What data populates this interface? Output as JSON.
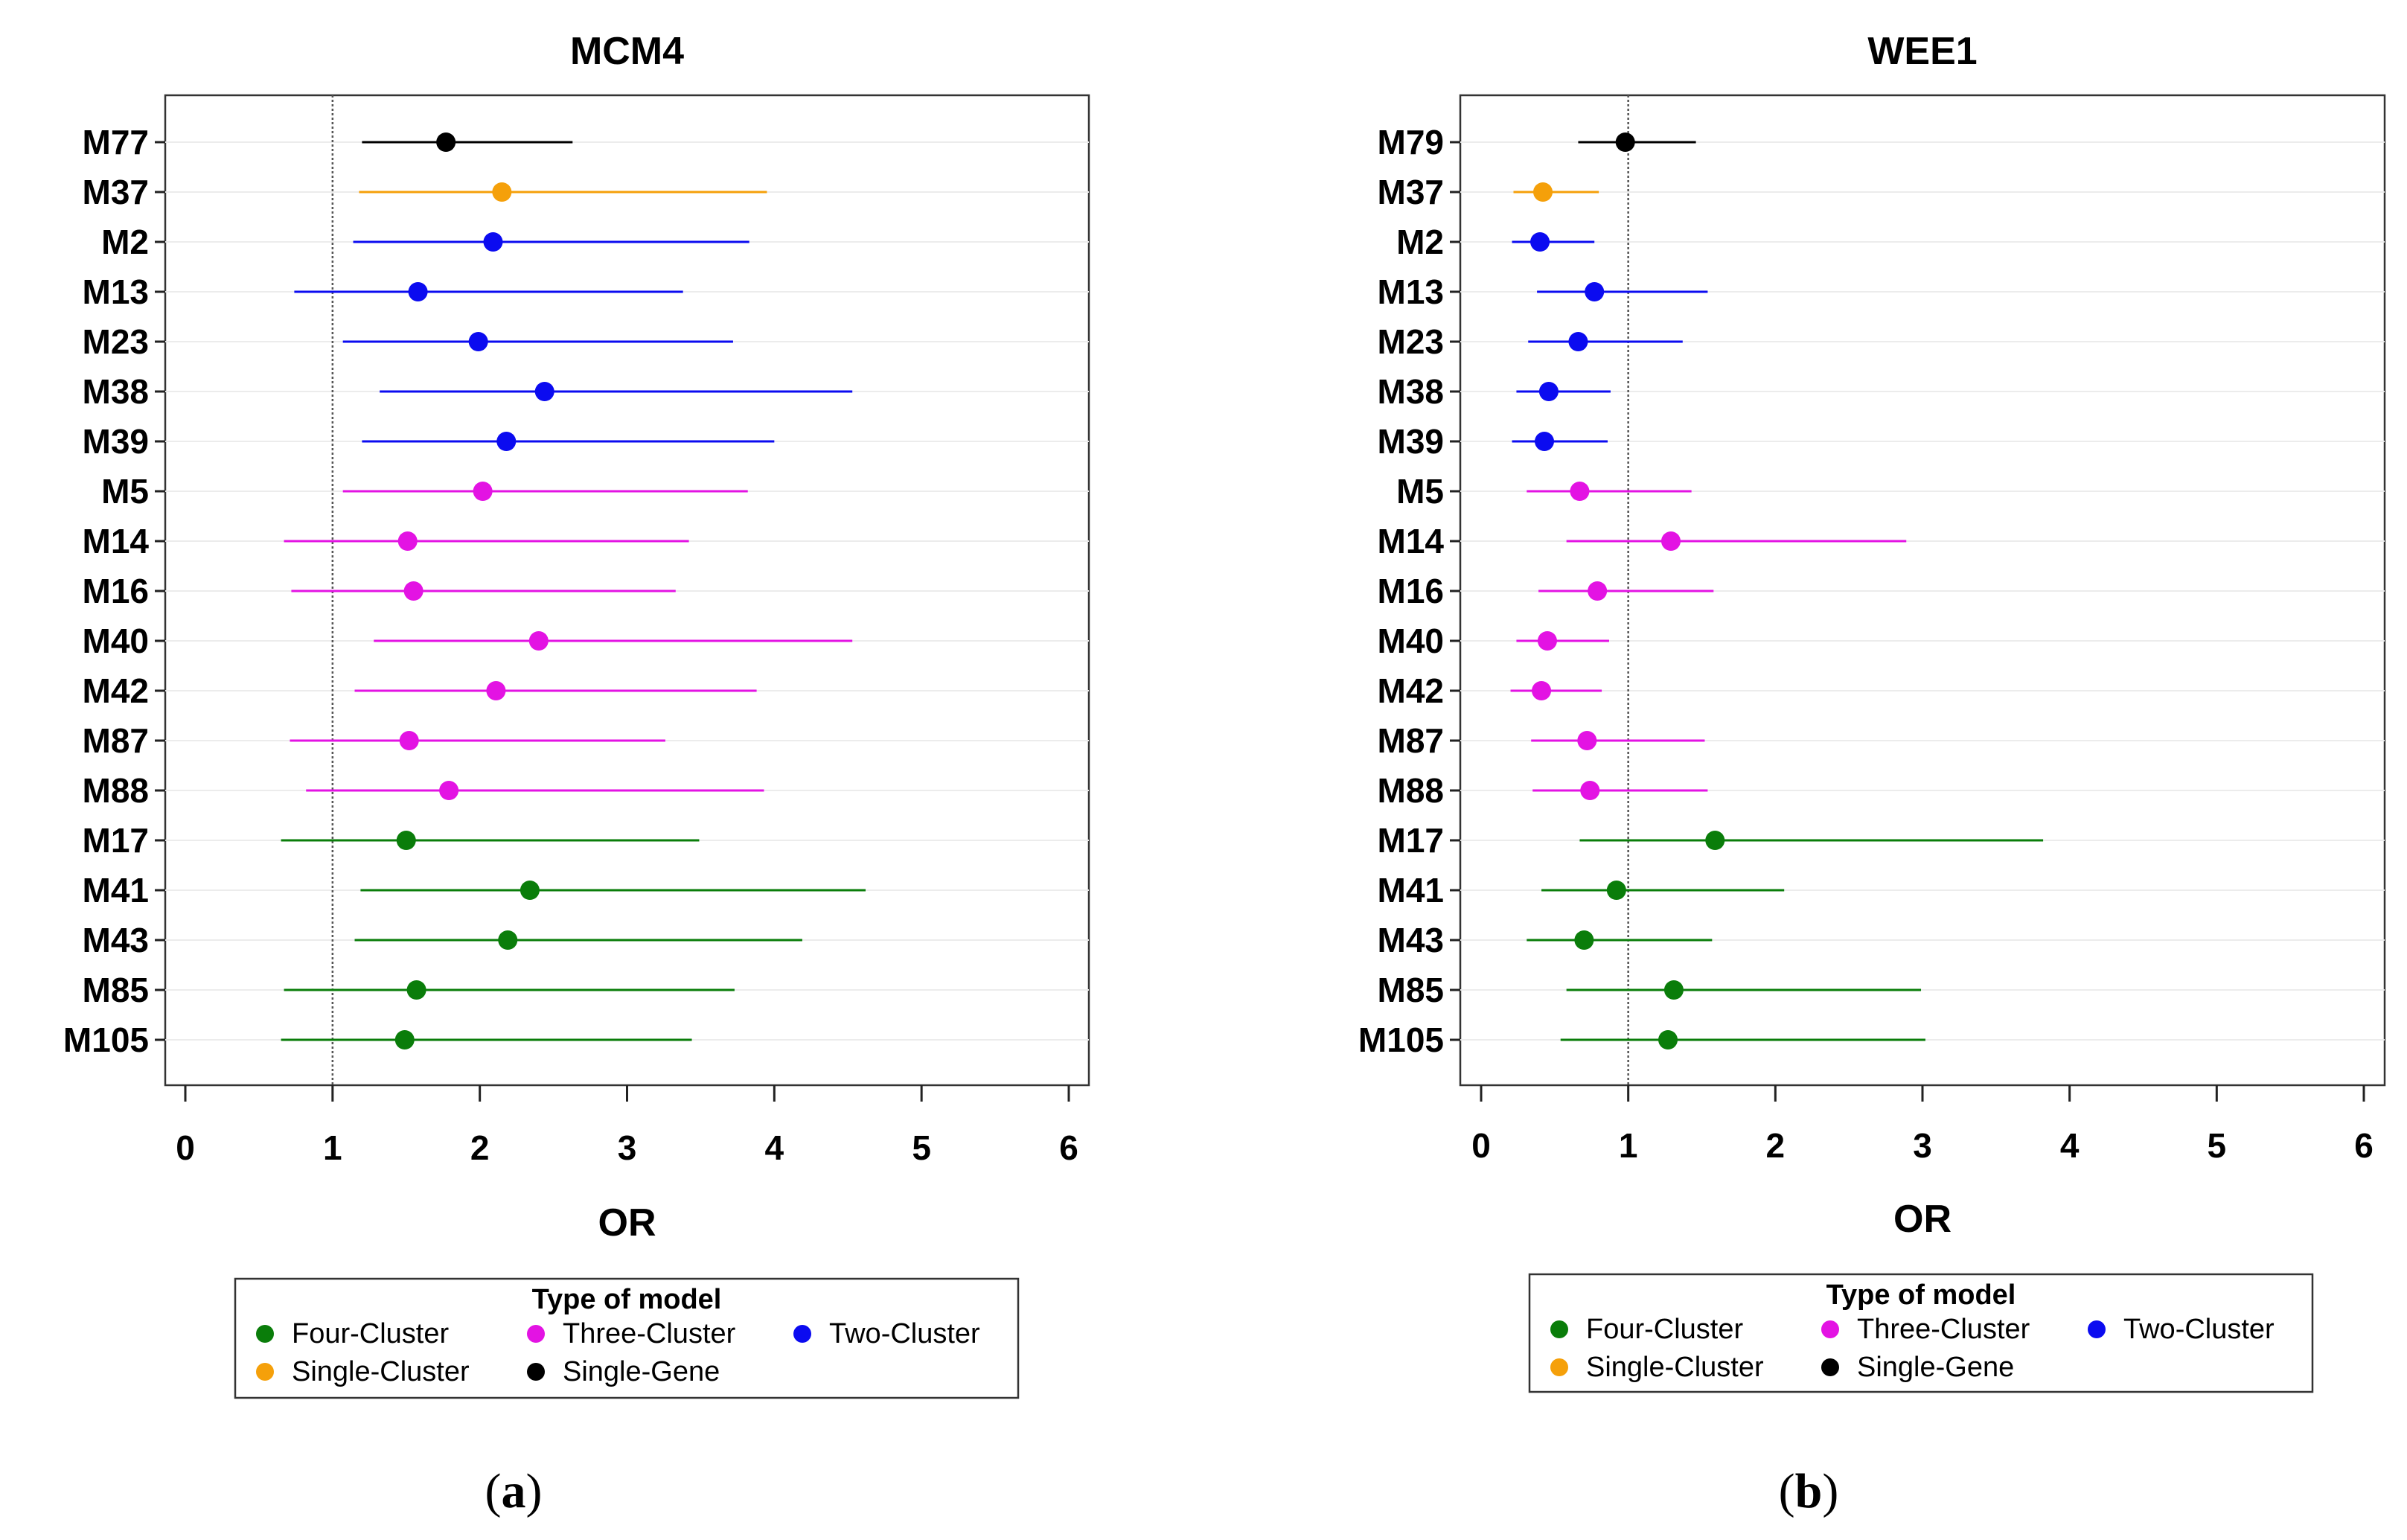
{
  "legend": {
    "title": "Type of model",
    "entries": [
      {
        "key": "four",
        "label": "Four-Cluster"
      },
      {
        "key": "three",
        "label": "Three-Cluster"
      },
      {
        "key": "two",
        "label": "Two-Cluster"
      },
      {
        "key": "single_cluster",
        "label": "Single-Cluster"
      },
      {
        "key": "single_gene",
        "label": "Single-Gene"
      }
    ]
  },
  "colors": {
    "four": "#0a7d0a",
    "three": "#e313e3",
    "two": "#0b0bf0",
    "single_cluster": "#f5a00a",
    "single_gene": "#000000"
  },
  "chart_data": [
    {
      "type": "scatter",
      "subtype": "forest-plot",
      "title": "MCM4",
      "caption": "a",
      "xlabel": "OR",
      "ylabel": "",
      "xlim": [
        0,
        6
      ],
      "xticks": [
        0,
        1,
        2,
        3,
        4,
        5,
        6
      ],
      "reference_line": 1,
      "rows": [
        {
          "label": "M77",
          "group": "single_gene",
          "or": 1.77,
          "lo": 1.2,
          "hi": 2.63
        },
        {
          "label": "M37",
          "group": "single_cluster",
          "or": 2.15,
          "lo": 1.18,
          "hi": 3.95
        },
        {
          "label": "M2",
          "group": "two",
          "or": 2.09,
          "lo": 1.14,
          "hi": 3.83
        },
        {
          "label": "M13",
          "group": "two",
          "or": 1.58,
          "lo": 0.74,
          "hi": 3.38
        },
        {
          "label": "M23",
          "group": "two",
          "or": 1.99,
          "lo": 1.07,
          "hi": 3.72
        },
        {
          "label": "M38",
          "group": "two",
          "or": 2.44,
          "lo": 1.32,
          "hi": 4.53
        },
        {
          "label": "M39",
          "group": "two",
          "or": 2.18,
          "lo": 1.2,
          "hi": 4.0
        },
        {
          "label": "M5",
          "group": "three",
          "or": 2.02,
          "lo": 1.07,
          "hi": 3.82
        },
        {
          "label": "M14",
          "group": "three",
          "or": 1.51,
          "lo": 0.67,
          "hi": 3.42
        },
        {
          "label": "M16",
          "group": "three",
          "or": 1.55,
          "lo": 0.72,
          "hi": 3.33
        },
        {
          "label": "M40",
          "group": "three",
          "or": 2.4,
          "lo": 1.28,
          "hi": 4.53
        },
        {
          "label": "M42",
          "group": "three",
          "or": 2.11,
          "lo": 1.15,
          "hi": 3.88
        },
        {
          "label": "M87",
          "group": "three",
          "or": 1.52,
          "lo": 0.71,
          "hi": 3.26
        },
        {
          "label": "M88",
          "group": "three",
          "or": 1.79,
          "lo": 0.82,
          "hi": 3.93
        },
        {
          "label": "M17",
          "group": "four",
          "or": 1.5,
          "lo": 0.65,
          "hi": 3.49
        },
        {
          "label": "M41",
          "group": "four",
          "or": 2.34,
          "lo": 1.19,
          "hi": 4.62
        },
        {
          "label": "M43",
          "group": "four",
          "or": 2.19,
          "lo": 1.15,
          "hi": 4.19
        },
        {
          "label": "M85",
          "group": "four",
          "or": 1.57,
          "lo": 0.67,
          "hi": 3.73
        },
        {
          "label": "M105",
          "group": "four",
          "or": 1.49,
          "lo": 0.65,
          "hi": 3.44
        }
      ]
    },
    {
      "type": "scatter",
      "subtype": "forest-plot",
      "title": "WEE1",
      "caption": "b",
      "xlabel": "OR",
      "ylabel": "",
      "xlim": [
        0,
        6
      ],
      "xticks": [
        0,
        1,
        2,
        3,
        4,
        5,
        6
      ],
      "reference_line": 1,
      "rows": [
        {
          "label": "M79",
          "group": "single_gene",
          "or": 0.98,
          "lo": 0.66,
          "hi": 1.46
        },
        {
          "label": "M37",
          "group": "single_cluster",
          "or": 0.42,
          "lo": 0.22,
          "hi": 0.8
        },
        {
          "label": "M2",
          "group": "two",
          "or": 0.4,
          "lo": 0.21,
          "hi": 0.77
        },
        {
          "label": "M13",
          "group": "two",
          "or": 0.77,
          "lo": 0.38,
          "hi": 1.54
        },
        {
          "label": "M23",
          "group": "two",
          "or": 0.66,
          "lo": 0.32,
          "hi": 1.37
        },
        {
          "label": "M38",
          "group": "two",
          "or": 0.46,
          "lo": 0.24,
          "hi": 0.88
        },
        {
          "label": "M39",
          "group": "two",
          "or": 0.43,
          "lo": 0.21,
          "hi": 0.86
        },
        {
          "label": "M5",
          "group": "three",
          "or": 0.67,
          "lo": 0.31,
          "hi": 1.43
        },
        {
          "label": "M14",
          "group": "three",
          "or": 1.29,
          "lo": 0.58,
          "hi": 2.89
        },
        {
          "label": "M16",
          "group": "three",
          "or": 0.79,
          "lo": 0.39,
          "hi": 1.58
        },
        {
          "label": "M40",
          "group": "three",
          "or": 0.45,
          "lo": 0.24,
          "hi": 0.87
        },
        {
          "label": "M42",
          "group": "three",
          "or": 0.41,
          "lo": 0.2,
          "hi": 0.82
        },
        {
          "label": "M87",
          "group": "three",
          "or": 0.72,
          "lo": 0.34,
          "hi": 1.52
        },
        {
          "label": "M88",
          "group": "three",
          "or": 0.74,
          "lo": 0.35,
          "hi": 1.54
        },
        {
          "label": "M17",
          "group": "four",
          "or": 1.59,
          "lo": 0.67,
          "hi": 3.82
        },
        {
          "label": "M41",
          "group": "four",
          "or": 0.92,
          "lo": 0.41,
          "hi": 2.06
        },
        {
          "label": "M43",
          "group": "four",
          "or": 0.7,
          "lo": 0.31,
          "hi": 1.57
        },
        {
          "label": "M85",
          "group": "four",
          "or": 1.31,
          "lo": 0.58,
          "hi": 2.99
        },
        {
          "label": "M105",
          "group": "four",
          "or": 1.27,
          "lo": 0.54,
          "hi": 3.02
        }
      ]
    }
  ]
}
